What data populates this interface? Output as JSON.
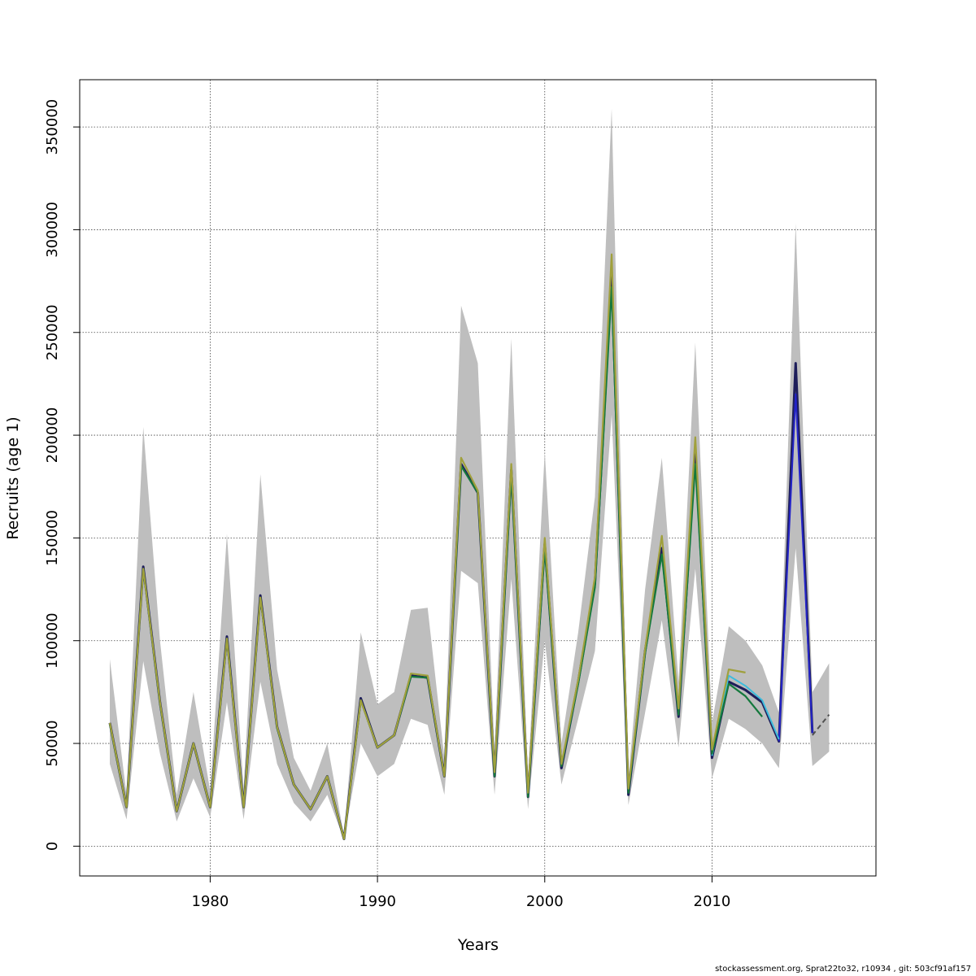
{
  "chart_data": {
    "type": "line",
    "title": "",
    "xlabel": "Years",
    "ylabel": "Recruits (age 1)",
    "xlim": [
      1972.2,
      2019.8
    ],
    "ylim": [
      -14500,
      373000
    ],
    "xticks": [
      1980,
      1990,
      2000,
      2010
    ],
    "yticks": [
      0,
      50000,
      100000,
      150000,
      200000,
      250000,
      300000,
      350000
    ],
    "grid": true,
    "legend": "none",
    "band_color": "#bebebe",
    "band": {
      "x": [
        1974,
        1975,
        1976,
        1977,
        1978,
        1979,
        1980,
        1981,
        1982,
        1983,
        1984,
        1985,
        1986,
        1987,
        1988,
        1989,
        1990,
        1991,
        1992,
        1993,
        1994,
        1995,
        1996,
        1997,
        1998,
        1999,
        2000,
        2001,
        2002,
        2003,
        2004,
        2005,
        2006,
        2007,
        2008,
        2009,
        2010,
        2011,
        2012,
        2013,
        2014,
        2015,
        2016,
        2017
      ],
      "lower": [
        40000,
        13000,
        90000,
        45000,
        12000,
        33000,
        14000,
        70000,
        13000,
        80000,
        40000,
        21000,
        12000,
        25000,
        3000,
        50000,
        34000,
        40000,
        62000,
        59000,
        25000,
        134000,
        128000,
        25000,
        130000,
        18000,
        100000,
        30000,
        62000,
        95000,
        210000,
        20000,
        65000,
        110000,
        48000,
        135000,
        33000,
        62000,
        57000,
        50000,
        38000,
        145000,
        39000,
        46000
      ],
      "upper": [
        91000,
        25000,
        204000,
        100000,
        25000,
        75000,
        27000,
        152000,
        28000,
        181000,
        86000,
        43000,
        27000,
        50000,
        5000,
        104000,
        69000,
        75000,
        115000,
        116000,
        43000,
        263000,
        235000,
        47000,
        247000,
        33000,
        192000,
        50000,
        104000,
        170000,
        359000,
        33000,
        125000,
        189000,
        80000,
        245000,
        60000,
        107000,
        100000,
        88000,
        65000,
        303000,
        75000,
        89000
      ]
    },
    "series": [
      {
        "color": "#1e1e5a",
        "width": 3.0,
        "dash": "",
        "x": [
          1974,
          1975,
          1976,
          1977,
          1978,
          1979,
          1980,
          1981,
          1982,
          1983,
          1984,
          1985,
          1986,
          1987,
          1988,
          1989,
          1990,
          1991,
          1992,
          1993,
          1994,
          1995,
          1996,
          1997,
          1998,
          1999,
          2000,
          2001,
          2002,
          2003,
          2004,
          2005,
          2006,
          2007,
          2008,
          2009,
          2010,
          2011,
          2012,
          2013,
          2014,
          2015,
          2016
        ],
        "y": [
          60000,
          19000,
          136000,
          70000,
          17000,
          50000,
          19000,
          102000,
          19000,
          122000,
          58000,
          30000,
          18000,
          34000,
          3500,
          72000,
          48000,
          54000,
          83000,
          82000,
          34000,
          186000,
          172000,
          34000,
          183000,
          24000,
          147000,
          38000,
          80000,
          128000,
          278000,
          25000,
          95000,
          145000,
          63000,
          193000,
          43000,
          80000,
          76000,
          70000,
          51000,
          235000,
          55000
        ]
      },
      {
        "color": "#2323c8",
        "width": 2.0,
        "dash": "",
        "x": [
          2014,
          2015,
          2016
        ],
        "y": [
          51000,
          220000,
          55000
        ]
      },
      {
        "color": "#3cbcdc",
        "width": 2.0,
        "dash": "",
        "x": [
          2010,
          2011,
          2012,
          2013,
          2014
        ],
        "y": [
          44000,
          83000,
          78000,
          71000,
          52000
        ]
      },
      {
        "color": "#14783c",
        "width": 2.2,
        "dash": "",
        "x": [
          1974,
          1975,
          1976,
          1977,
          1978,
          1979,
          1980,
          1981,
          1982,
          1983,
          1984,
          1985,
          1986,
          1987,
          1988,
          1989,
          1990,
          1991,
          1992,
          1993,
          1994,
          1995,
          1996,
          1997,
          1998,
          1999,
          2000,
          2001,
          2002,
          2003,
          2004,
          2005,
          2006,
          2007,
          2008,
          2009,
          2010,
          2011,
          2012,
          2013
        ],
        "y": [
          59500,
          19000,
          135000,
          69500,
          17000,
          50000,
          19000,
          101000,
          19000,
          121000,
          57500,
          30000,
          18000,
          34000,
          3500,
          71000,
          48000,
          54000,
          82500,
          82000,
          34000,
          185000,
          172000,
          34000,
          181000,
          24000,
          145000,
          39000,
          79000,
          126000,
          272000,
          26000,
          94000,
          142000,
          64000,
          186000,
          45000,
          79000,
          73000,
          63000
        ]
      },
      {
        "color": "#a0a03c",
        "width": 2.2,
        "dash": "",
        "x": [
          1974,
          1975,
          1976,
          1977,
          1978,
          1979,
          1980,
          1981,
          1982,
          1983,
          1984,
          1985,
          1986,
          1987,
          1988,
          1989,
          1990,
          1991,
          1992,
          1993,
          1994,
          1995,
          1996,
          1997,
          1998,
          1999,
          2000,
          2001,
          2002,
          2003,
          2004,
          2005,
          2006,
          2007,
          2008,
          2009,
          2010,
          2011,
          2012
        ],
        "y": [
          60000,
          19000,
          135000,
          70000,
          17000,
          50000,
          19000,
          101000,
          19000,
          121000,
          58000,
          30000,
          18000,
          34000,
          3500,
          71000,
          48000,
          54000,
          84000,
          83000,
          34000,
          189000,
          173000,
          36000,
          186000,
          26000,
          150000,
          40000,
          81000,
          131000,
          288000,
          28000,
          96000,
          151000,
          67000,
          199000,
          47000,
          86000,
          84500
        ]
      },
      {
        "color": "#505050",
        "width": 2.0,
        "dash": "6,4",
        "x": [
          2016,
          2017
        ],
        "y": [
          54000,
          64000
        ]
      }
    ]
  },
  "footer": "stockassessment.org, Sprat22to32, r10934 , git: 503cf91af157"
}
